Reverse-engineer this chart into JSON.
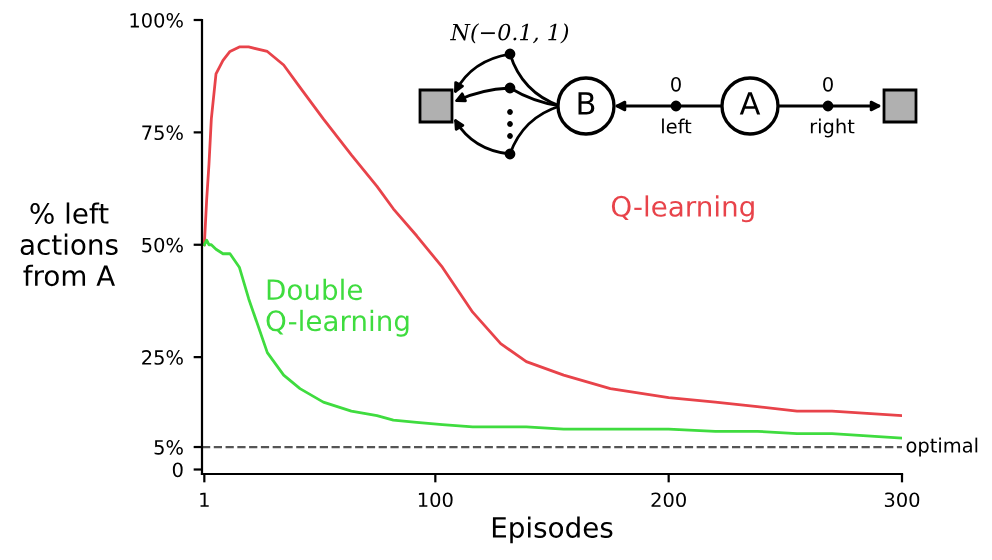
{
  "chart_data": {
    "type": "line",
    "xlabel": "Episodes",
    "ylabel": "% left\nactions\nfrom A",
    "x": [
      1,
      2,
      3,
      4,
      6,
      9,
      12,
      16,
      20,
      28,
      35,
      42,
      52,
      64,
      75,
      82,
      92,
      103,
      116,
      128,
      139,
      155,
      175,
      200,
      220,
      238,
      255,
      270,
      285,
      300
    ],
    "series": [
      {
        "name": "Q-learning",
        "color": "#e8434a",
        "values": [
          50,
          60,
          68,
          78,
          88,
          91,
          93,
          94,
          94,
          93,
          90,
          85,
          78,
          70,
          63,
          58,
          52,
          45,
          35,
          28,
          24,
          21,
          18,
          16,
          15,
          14,
          13,
          13,
          12.5,
          12
        ]
      },
      {
        "name": "Double\nQ-learning",
        "color": "#3fdc3f",
        "values": [
          50,
          51,
          50,
          50,
          49,
          48,
          48,
          45,
          38,
          26,
          21,
          18,
          15,
          13,
          12,
          11,
          10.5,
          10,
          9.5,
          9.5,
          9.5,
          9,
          9,
          9,
          8.5,
          8.5,
          8,
          8,
          7.5,
          7
        ]
      }
    ],
    "xlim": [
      0,
      300
    ],
    "xticks": [
      1,
      100,
      200,
      300
    ],
    "ylim": [
      -1,
      100
    ],
    "yticks": [
      {
        "value": 0,
        "label": "0"
      },
      {
        "value": 5,
        "label": "5%"
      },
      {
        "value": 25,
        "label": "25%"
      },
      {
        "value": 50,
        "label": "50%"
      },
      {
        "value": 75,
        "label": "75%"
      },
      {
        "value": 100,
        "label": "100%"
      }
    ],
    "ref_lines": [
      {
        "axis": "y",
        "value": 5,
        "label": "optimal",
        "color": "#555555",
        "line_style": "dashed"
      }
    ],
    "annotations": [
      "N(−0.1, 1)",
      "B",
      "A",
      "0",
      "left",
      "0",
      "right"
    ],
    "grid": false,
    "legend": false,
    "marker": "none",
    "line_style": "solid"
  }
}
